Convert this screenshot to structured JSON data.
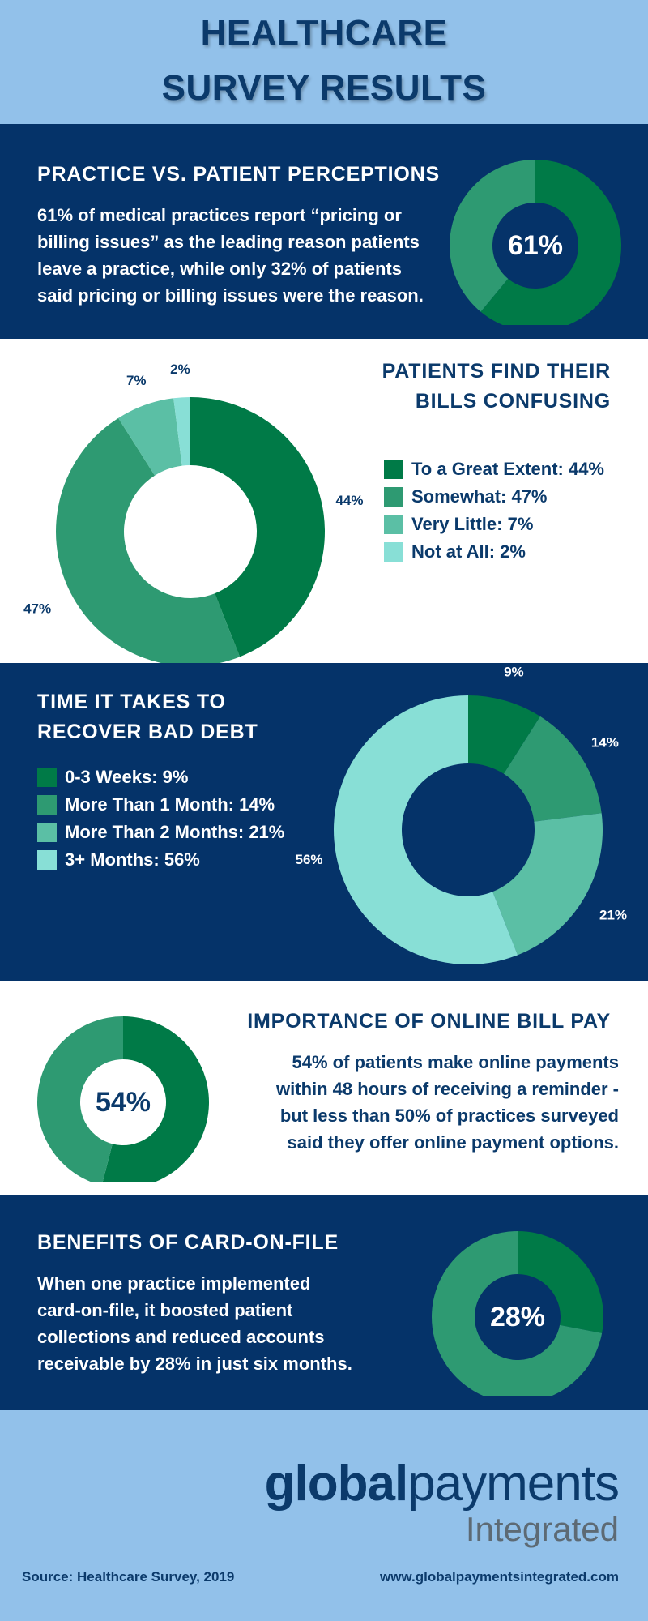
{
  "title": [
    "HEALTHCARE",
    "SURVEY RESULTS"
  ],
  "colors": {
    "navy": "#053369",
    "light_blue": "#92c1ea",
    "green_dark": "#007a47",
    "green_mid": "#2e9a72",
    "green_light": "#5bbfa5",
    "aqua": "#88dfd6"
  },
  "section1": {
    "heading": "PRACTICE VS. PATIENT PERCEPTIONS",
    "body": [
      "61% of medical practices report “pricing or",
      "billing issues” as the leading reason patients",
      "leave a practice, while only 32% of patients",
      "said pricing or billing issues were the reason."
    ],
    "center_label": "61%"
  },
  "section2": {
    "heading": [
      "PATIENTS FIND THEIR",
      "BILLS CONFUSING"
    ],
    "legend": [
      "To a Great Extent: 44%",
      "Somewhat: 47%",
      "Very Little: 7%",
      "Not at All: 2%"
    ]
  },
  "section3": {
    "heading": [
      "TIME IT TAKES TO",
      "RECOVER BAD DEBT"
    ],
    "legend": [
      "0-3 Weeks: 9%",
      "More Than 1 Month: 14%",
      "More Than 2 Months: 21%",
      "3+ Months: 56%"
    ]
  },
  "section4": {
    "heading": "IMPORTANCE OF ONLINE BILL PAY",
    "body": [
      "54% of patients make online payments",
      "within 48 hours of receiving a reminder -",
      "but less than 50% of practices surveyed",
      "said they offer online payment options."
    ],
    "center_label": "54%"
  },
  "section5": {
    "heading": "BENEFITS OF CARD-ON-FILE",
    "body": [
      "When one practice implemented",
      "card-on-file, it boosted patient",
      "collections and reduced accounts",
      "receivable by 28% in just six months."
    ],
    "center_label": "28%"
  },
  "footer": {
    "logo_bold": "global",
    "logo_light": "payments",
    "logo_sub": "Integrated",
    "source": "Source: Healthcare Survey, 2019",
    "url": "www.globalpaymentsintegrated.com"
  },
  "chart_data": [
    {
      "type": "pie",
      "variant": "donut",
      "categories": [
        "",
        ""
      ],
      "values": [
        61,
        39
      ],
      "center_label": "61%"
    },
    {
      "type": "pie",
      "variant": "donut",
      "categories": [
        "To a Great Extent",
        "Somewhat",
        "Very Little",
        "Not at All"
      ],
      "values": [
        44,
        47,
        7,
        2
      ],
      "data_labels": [
        "44%",
        "47%",
        "7%",
        "2%"
      ]
    },
    {
      "type": "pie",
      "variant": "donut",
      "categories": [
        "0-3 Weeks",
        "More Than 1 Month",
        "More Than 2 Months",
        "3+ Months"
      ],
      "values": [
        9,
        14,
        21,
        56
      ],
      "data_labels": [
        "9%",
        "14%",
        "21%",
        "56%"
      ]
    },
    {
      "type": "pie",
      "variant": "donut",
      "categories": [
        "",
        ""
      ],
      "values": [
        54,
        46
      ],
      "center_label": "54%"
    },
    {
      "type": "pie",
      "variant": "donut",
      "categories": [
        "",
        ""
      ],
      "values": [
        28,
        72
      ],
      "center_label": "28%"
    }
  ]
}
